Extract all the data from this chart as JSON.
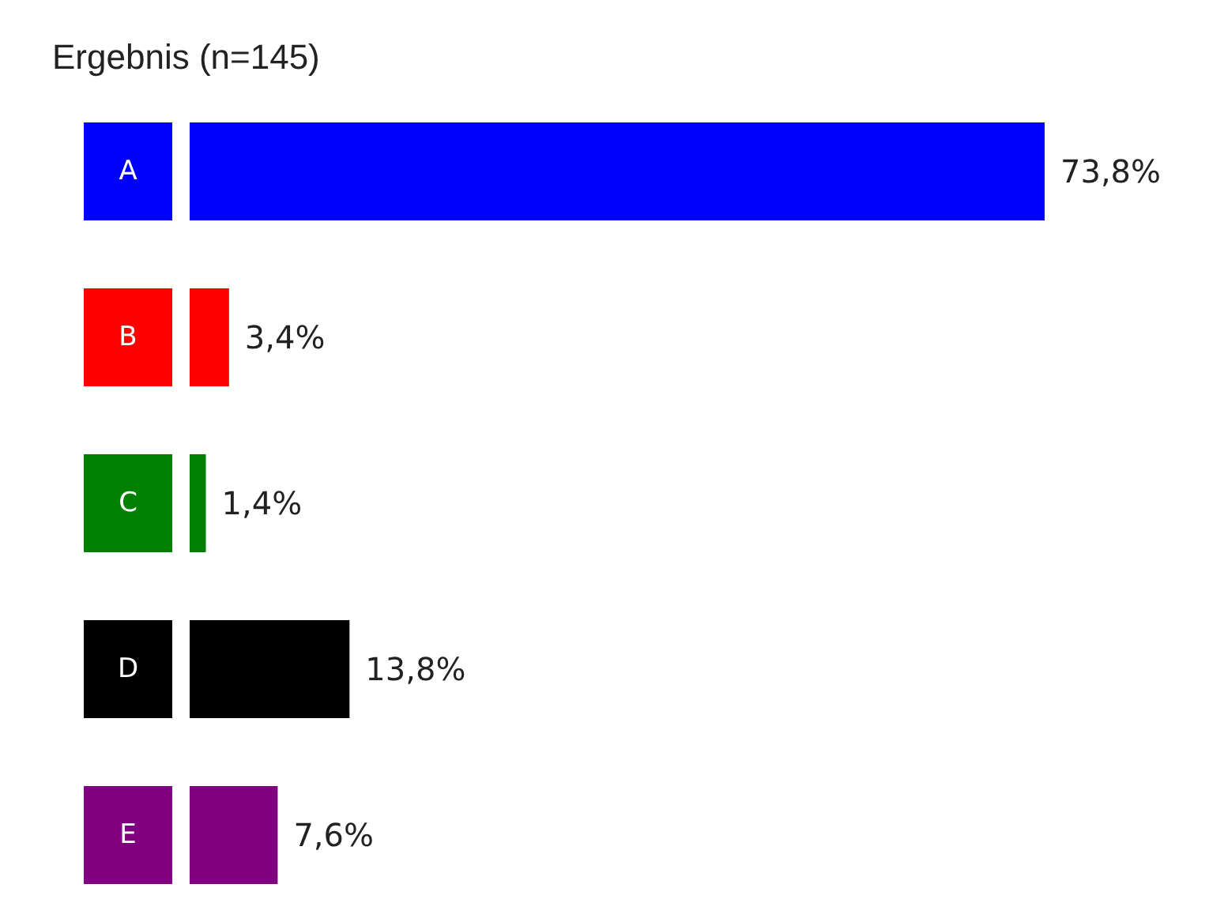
{
  "chart_data": {
    "type": "bar",
    "orientation": "horizontal",
    "title": "Ergebnis (n=145)",
    "categories": [
      "A",
      "B",
      "C",
      "D",
      "E"
    ],
    "values": [
      73.8,
      3.4,
      1.4,
      13.8,
      7.6
    ],
    "colors": [
      "#0000ff",
      "#ff0000",
      "#008000",
      "#000000",
      "#800080"
    ],
    "value_labels": [
      "73,8%",
      "3,4%",
      "1,4%",
      "13,8%",
      "7,6%"
    ]
  }
}
